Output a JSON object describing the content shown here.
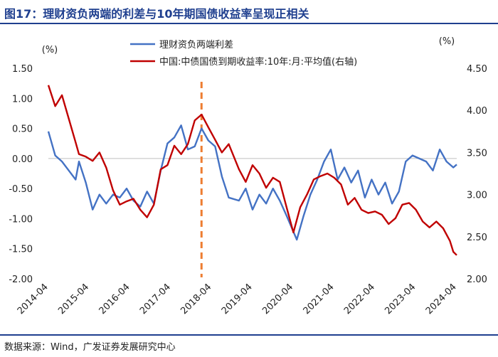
{
  "title": "图17：理财资负两端的利差与10年期国债收益率呈现正相关",
  "source": "数据来源：Wind，广发证券发展研究中心",
  "chart_data": {
    "type": "line",
    "left_unit": "(%)",
    "right_unit": "(%)",
    "left_axis": {
      "ylim": [
        -2.0,
        1.5
      ],
      "ticks": [
        "1.50",
        "1.00",
        "0.50",
        "0.00",
        "-0.50",
        "-1.00",
        "-1.50",
        "-2.00"
      ]
    },
    "right_axis": {
      "ylim": [
        2.0,
        4.5
      ],
      "ticks": [
        "4.50",
        "4.00",
        "3.50",
        "3.00",
        "2.50",
        "2.00"
      ]
    },
    "x_ticks": [
      "2014-04",
      "2015-04",
      "2016-04",
      "2017-04",
      "2018-04",
      "2019-04",
      "2020-04",
      "2021-04",
      "2022-04",
      "2023-04",
      "2024-04"
    ],
    "x_range": [
      "2014-04",
      "2024-04"
    ],
    "legend_position": "top-center",
    "marker": {
      "date": "2018-01",
      "style": "dashed",
      "color": "#ed7d31"
    },
    "series": [
      {
        "name": "理财资负两端利差",
        "axis": "left",
        "color": "#4472c4",
        "points": [
          [
            "2014-04",
            0.45
          ],
          [
            "2014-06",
            0.05
          ],
          [
            "2014-08",
            -0.05
          ],
          [
            "2014-10",
            -0.2
          ],
          [
            "2014-12",
            -0.35
          ],
          [
            "2015-01",
            -0.05
          ],
          [
            "2015-03",
            -0.4
          ],
          [
            "2015-05",
            -0.85
          ],
          [
            "2015-07",
            -0.6
          ],
          [
            "2015-09",
            -0.75
          ],
          [
            "2015-11",
            -0.6
          ],
          [
            "2016-01",
            -0.65
          ],
          [
            "2016-03",
            -0.5
          ],
          [
            "2016-05",
            -0.7
          ],
          [
            "2016-07",
            -0.8
          ],
          [
            "2016-09",
            -0.55
          ],
          [
            "2016-11",
            -0.75
          ],
          [
            "2017-01",
            -0.2
          ],
          [
            "2017-03",
            0.25
          ],
          [
            "2017-05",
            0.35
          ],
          [
            "2017-07",
            0.55
          ],
          [
            "2017-09",
            0.15
          ],
          [
            "2017-11",
            0.2
          ],
          [
            "2018-01",
            0.5
          ],
          [
            "2018-03",
            0.3
          ],
          [
            "2018-05",
            0.2
          ],
          [
            "2018-07",
            -0.3
          ],
          [
            "2018-09",
            -0.65
          ],
          [
            "2018-12",
            -0.7
          ],
          [
            "2019-02",
            -0.5
          ],
          [
            "2019-04",
            -0.85
          ],
          [
            "2019-06",
            -0.6
          ],
          [
            "2019-08",
            -0.75
          ],
          [
            "2019-10",
            -0.5
          ],
          [
            "2019-12",
            -0.7
          ],
          [
            "2020-02",
            -0.95
          ],
          [
            "2020-05",
            -1.35
          ],
          [
            "2020-07",
            -0.95
          ],
          [
            "2020-09",
            -0.6
          ],
          [
            "2020-11",
            -0.35
          ],
          [
            "2021-01",
            -0.05
          ],
          [
            "2021-03",
            0.15
          ],
          [
            "2021-05",
            -0.35
          ],
          [
            "2021-07",
            -0.15
          ],
          [
            "2021-09",
            -0.4
          ],
          [
            "2021-11",
            -0.2
          ],
          [
            "2022-01",
            -0.65
          ],
          [
            "2022-03",
            -0.35
          ],
          [
            "2022-05",
            -0.6
          ],
          [
            "2022-07",
            -0.4
          ],
          [
            "2022-09",
            -0.75
          ],
          [
            "2022-11",
            -0.55
          ],
          [
            "2023-01",
            -0.05
          ],
          [
            "2023-03",
            0.05
          ],
          [
            "2023-05",
            0.0
          ],
          [
            "2023-07",
            -0.05
          ],
          [
            "2023-09",
            -0.2
          ],
          [
            "2023-11",
            0.15
          ],
          [
            "2024-01",
            -0.05
          ],
          [
            "2024-03",
            -0.15
          ],
          [
            "2024-04",
            -0.1
          ]
        ]
      },
      {
        "name": "中国:中债国债到期收益率:10年:月:平均值(右轴)",
        "axis": "right",
        "color": "#c00000",
        "points": [
          [
            "2014-04",
            4.3
          ],
          [
            "2014-06",
            4.05
          ],
          [
            "2014-08",
            4.18
          ],
          [
            "2014-10",
            3.9
          ],
          [
            "2014-12",
            3.62
          ],
          [
            "2015-01",
            3.48
          ],
          [
            "2015-03",
            3.45
          ],
          [
            "2015-05",
            3.4
          ],
          [
            "2015-07",
            3.5
          ],
          [
            "2015-09",
            3.32
          ],
          [
            "2015-11",
            3.05
          ],
          [
            "2016-01",
            2.88
          ],
          [
            "2016-03",
            2.92
          ],
          [
            "2016-05",
            2.95
          ],
          [
            "2016-07",
            2.82
          ],
          [
            "2016-09",
            2.73
          ],
          [
            "2016-11",
            2.88
          ],
          [
            "2017-01",
            3.3
          ],
          [
            "2017-03",
            3.35
          ],
          [
            "2017-05",
            3.58
          ],
          [
            "2017-07",
            3.48
          ],
          [
            "2017-09",
            3.6
          ],
          [
            "2017-11",
            3.88
          ],
          [
            "2018-01",
            3.95
          ],
          [
            "2018-03",
            3.8
          ],
          [
            "2018-05",
            3.65
          ],
          [
            "2018-07",
            3.5
          ],
          [
            "2018-09",
            3.6
          ],
          [
            "2018-12",
            3.3
          ],
          [
            "2019-02",
            3.15
          ],
          [
            "2019-04",
            3.35
          ],
          [
            "2019-06",
            3.25
          ],
          [
            "2019-08",
            3.08
          ],
          [
            "2019-10",
            3.2
          ],
          [
            "2019-12",
            3.15
          ],
          [
            "2020-02",
            2.85
          ],
          [
            "2020-04",
            2.55
          ],
          [
            "2020-06",
            2.85
          ],
          [
            "2020-08",
            3.0
          ],
          [
            "2020-10",
            3.18
          ],
          [
            "2020-12",
            3.22
          ],
          [
            "2021-02",
            3.25
          ],
          [
            "2021-04",
            3.2
          ],
          [
            "2021-06",
            3.12
          ],
          [
            "2021-08",
            2.88
          ],
          [
            "2021-10",
            2.96
          ],
          [
            "2021-12",
            2.82
          ],
          [
            "2022-02",
            2.78
          ],
          [
            "2022-04",
            2.8
          ],
          [
            "2022-06",
            2.76
          ],
          [
            "2022-08",
            2.65
          ],
          [
            "2022-10",
            2.72
          ],
          [
            "2022-12",
            2.88
          ],
          [
            "2023-02",
            2.9
          ],
          [
            "2023-04",
            2.82
          ],
          [
            "2023-06",
            2.68
          ],
          [
            "2023-08",
            2.61
          ],
          [
            "2023-10",
            2.68
          ],
          [
            "2023-12",
            2.6
          ],
          [
            "2024-02",
            2.45
          ],
          [
            "2024-03",
            2.32
          ],
          [
            "2024-04",
            2.28
          ]
        ]
      }
    ]
  }
}
